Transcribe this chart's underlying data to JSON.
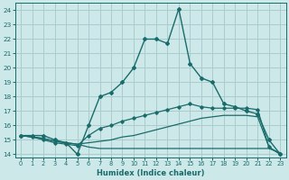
{
  "xlabel": "Humidex (Indice chaleur)",
  "ylabel": "",
  "bg_color": "#cce8e8",
  "grid_color": "#aacccc",
  "line_color": "#1a6b6b",
  "xlim": [
    -0.5,
    23.5
  ],
  "ylim": [
    13.8,
    24.5
  ],
  "xticks": [
    0,
    1,
    2,
    3,
    4,
    5,
    6,
    7,
    8,
    9,
    10,
    11,
    12,
    13,
    14,
    15,
    16,
    17,
    18,
    19,
    20,
    21,
    22,
    23
  ],
  "yticks": [
    14,
    15,
    16,
    17,
    18,
    19,
    20,
    21,
    22,
    23,
    24
  ],
  "curve1_x": [
    0,
    1,
    2,
    3,
    4,
    5,
    6,
    7,
    8,
    9,
    10,
    11,
    12,
    13,
    14,
    15,
    16,
    17,
    18,
    19,
    20,
    21,
    22,
    23
  ],
  "curve1_y": [
    15.3,
    15.3,
    15.3,
    15.0,
    14.8,
    14.0,
    16.0,
    18.0,
    18.3,
    19.0,
    20.0,
    22.0,
    22.0,
    21.7,
    24.1,
    20.3,
    19.3,
    19.0,
    17.5,
    17.3,
    17.0,
    16.8,
    15.0,
    14.0
  ],
  "curve2_x": [
    0,
    1,
    2,
    3,
    4,
    5,
    6,
    7,
    8,
    9,
    10,
    11,
    12,
    13,
    14,
    15,
    16,
    17,
    18,
    19,
    20,
    21,
    22,
    23
  ],
  "curve2_y": [
    15.3,
    15.2,
    15.0,
    14.8,
    14.7,
    14.6,
    15.3,
    15.8,
    16.0,
    16.3,
    16.5,
    16.7,
    16.9,
    17.1,
    17.3,
    17.5,
    17.3,
    17.2,
    17.2,
    17.2,
    17.2,
    17.1,
    14.5,
    14.0
  ],
  "curve3_x": [
    0,
    1,
    2,
    3,
    4,
    5,
    6,
    7,
    8,
    9,
    10,
    11,
    12,
    13,
    14,
    15,
    16,
    17,
    18,
    19,
    20,
    21,
    22,
    23
  ],
  "curve3_y": [
    15.3,
    15.2,
    15.1,
    14.9,
    14.8,
    14.7,
    14.8,
    14.9,
    15.0,
    15.2,
    15.3,
    15.5,
    15.7,
    15.9,
    16.1,
    16.3,
    16.5,
    16.6,
    16.7,
    16.7,
    16.7,
    16.6,
    14.5,
    14.0
  ],
  "curve4_x": [
    0,
    1,
    2,
    3,
    4,
    5,
    6,
    7,
    8,
    9,
    10,
    11,
    12,
    13,
    14,
    15,
    16,
    17,
    18,
    19,
    20,
    21,
    22,
    23
  ],
  "curve4_y": [
    15.3,
    15.2,
    15.1,
    14.9,
    14.8,
    14.7,
    14.5,
    14.4,
    14.4,
    14.4,
    14.4,
    14.4,
    14.4,
    14.4,
    14.4,
    14.4,
    14.4,
    14.4,
    14.4,
    14.4,
    14.4,
    14.4,
    14.4,
    14.1
  ]
}
